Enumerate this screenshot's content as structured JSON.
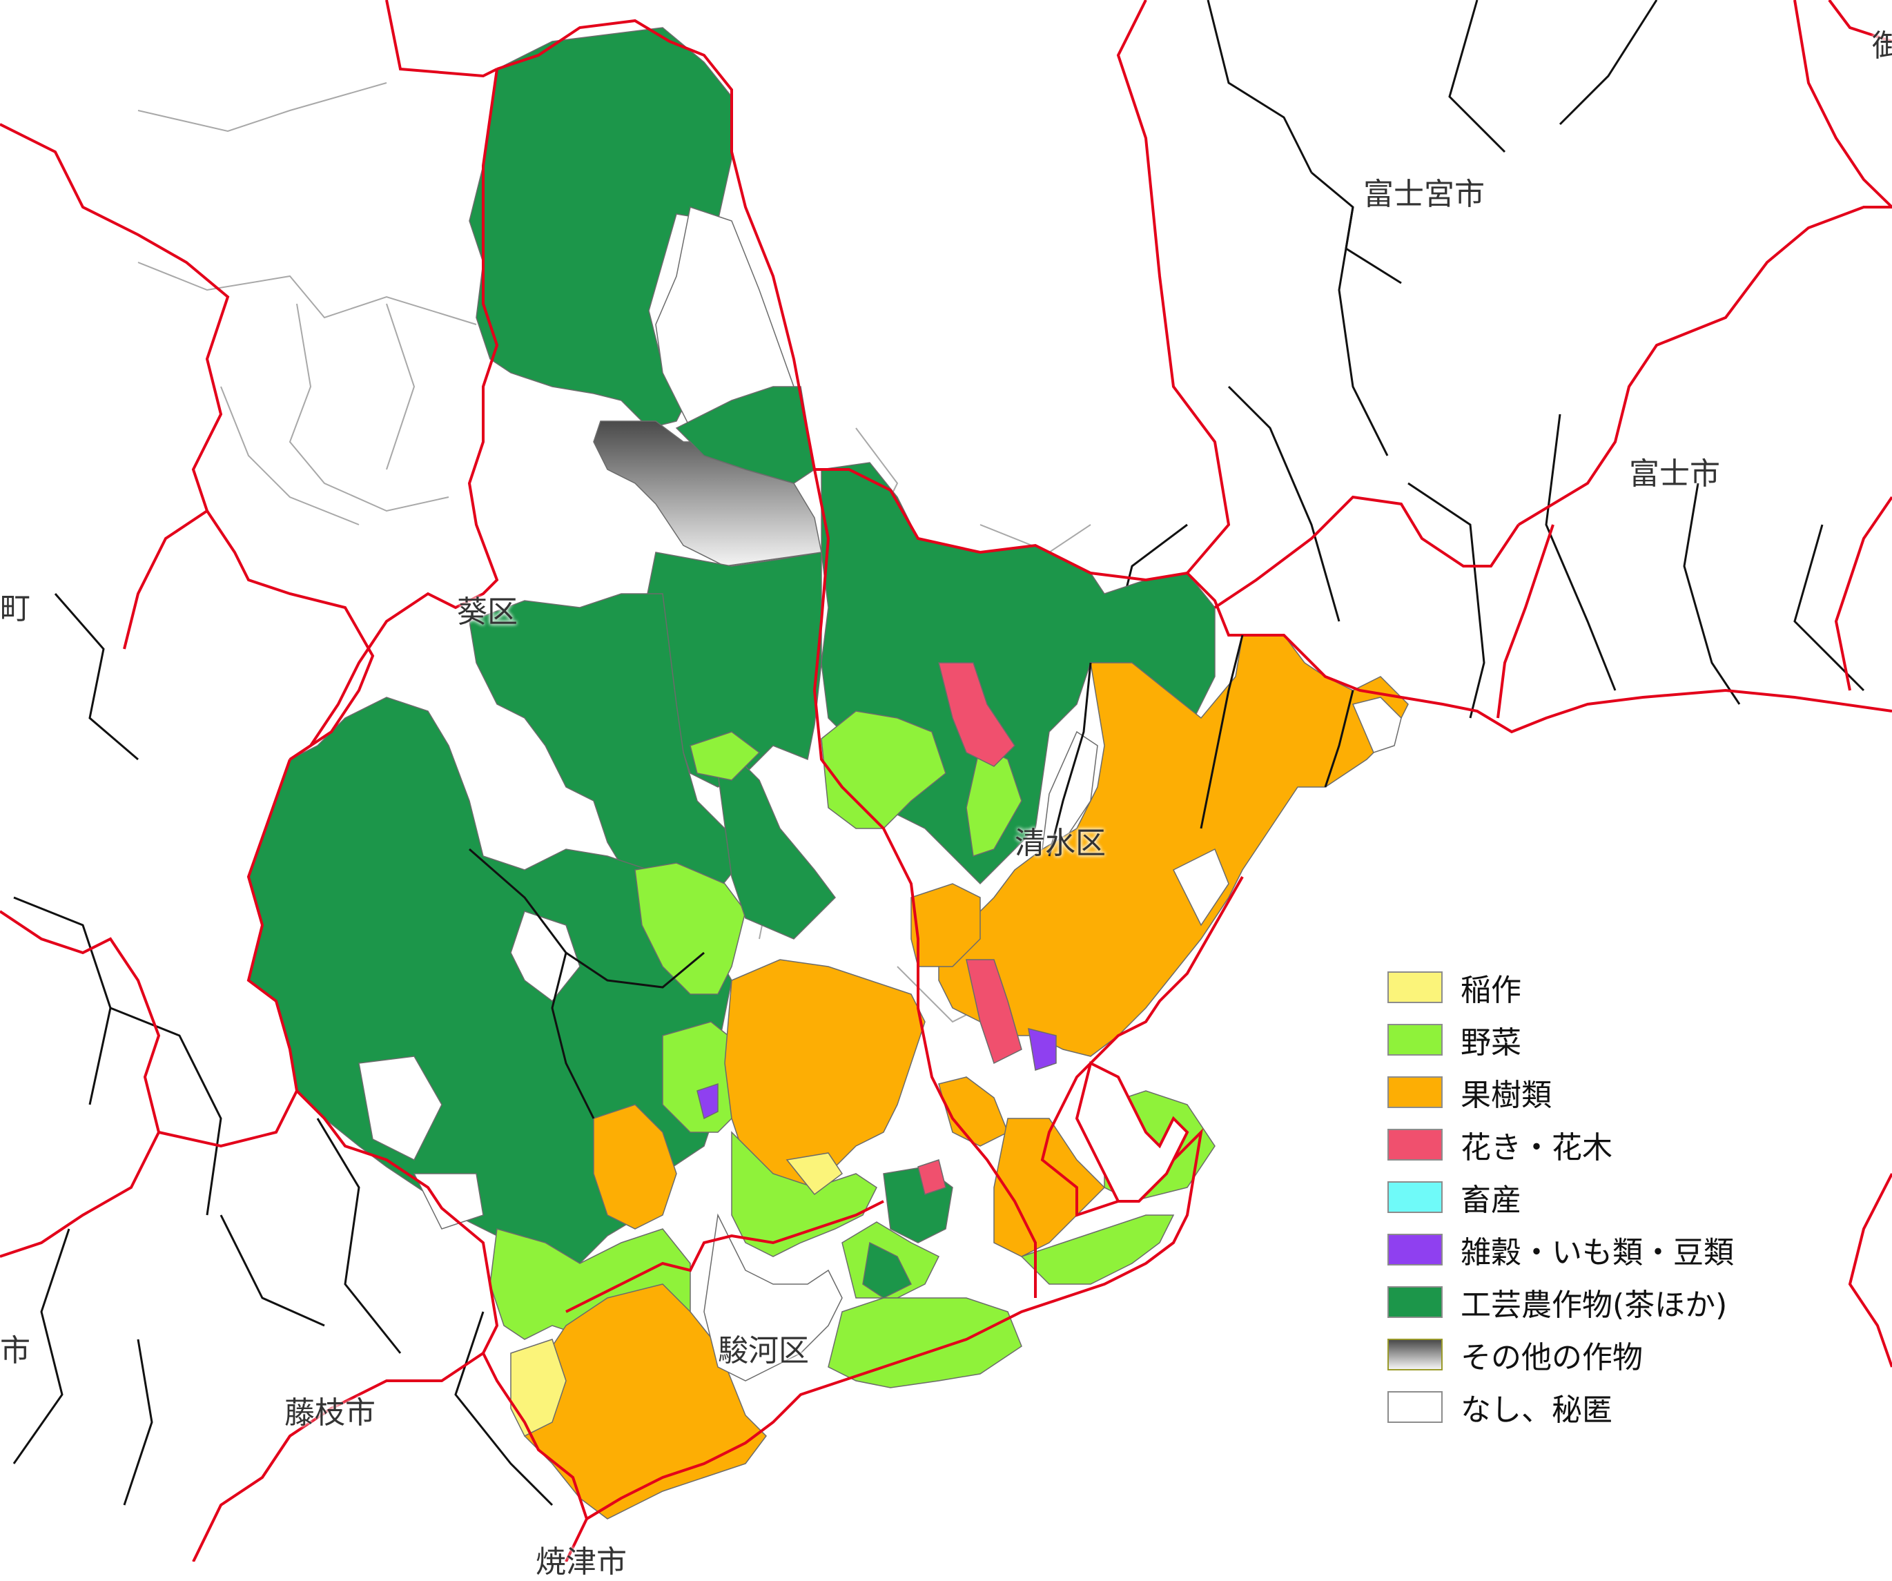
{
  "places": {
    "fujinomiya": "富士宮市",
    "fuji": "富士市",
    "aoi": "葵区",
    "shimizu": "清水区",
    "suruga": "駿河区",
    "fujieda": "藤枝市",
    "yaizu": "焼津市",
    "edge_left_top": "町",
    "edge_left_mid": "市",
    "edge_top_right": "御"
  },
  "legend": {
    "items": [
      {
        "label": "稲作",
        "color": "#fbf47a"
      },
      {
        "label": "野菜",
        "color": "#8ff23a"
      },
      {
        "label": "果樹類",
        "color": "#fdae04"
      },
      {
        "label": "花き・花木",
        "color": "#f0506e"
      },
      {
        "label": "畜産",
        "color": "#6ffaf9"
      },
      {
        "label": "雑穀・いも類・豆類",
        "color": "#8f40f0"
      },
      {
        "label": "工芸農作物(茶ほか)",
        "color": "#1c964a"
      },
      {
        "label": "その他の作物",
        "color": "gradient-gray"
      },
      {
        "label": "なし、秘匿",
        "color": "#ffffff"
      }
    ]
  },
  "colors": {
    "ward_boundary": "#e3001a",
    "municipal_boundary": "#000000",
    "district_boundary": "#9a9a9a",
    "sea": "#ffffff"
  }
}
